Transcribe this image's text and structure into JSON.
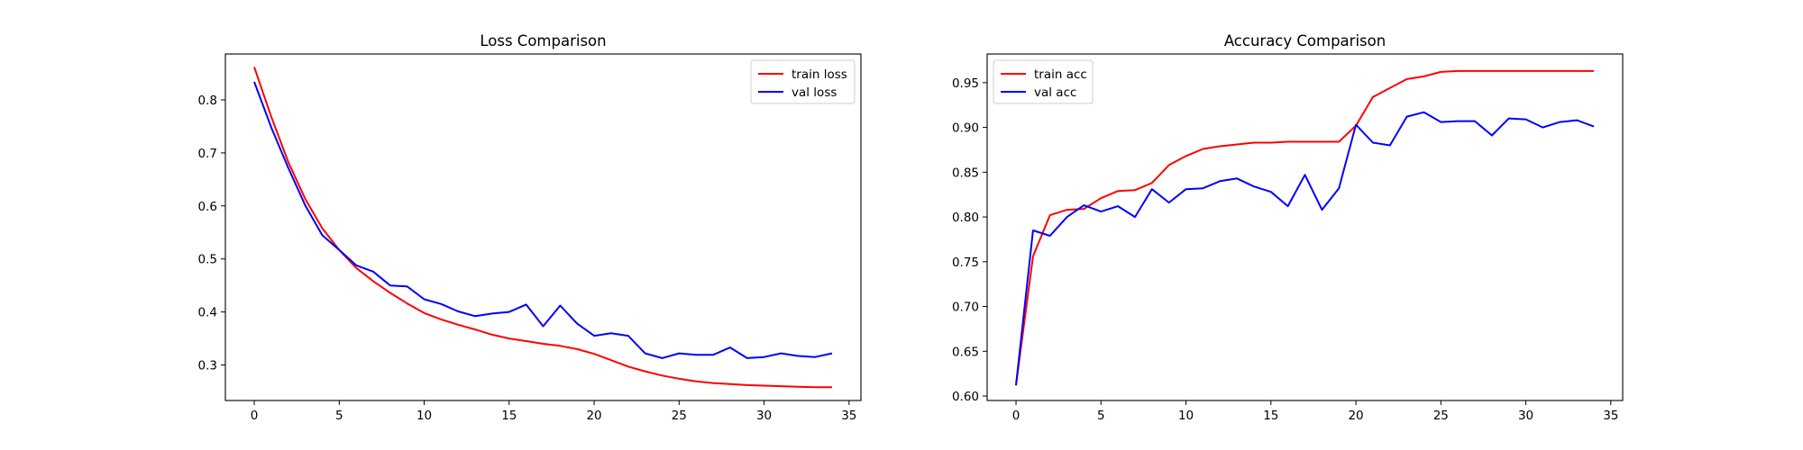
{
  "chart_data": [
    {
      "type": "line",
      "title": "Loss Comparison",
      "xlabel": "",
      "ylabel": "",
      "xlim": [
        -1.7,
        35.7
      ],
      "ylim": [
        0.233,
        0.8865
      ],
      "xticks": [
        0,
        5,
        10,
        15,
        20,
        25,
        30,
        35
      ],
      "yticks": [
        0.3,
        0.4,
        0.5,
        0.6,
        0.7,
        0.8
      ],
      "grid": false,
      "legend_position": "top-right",
      "x": [
        0,
        1,
        2,
        3,
        4,
        5,
        6,
        7,
        8,
        9,
        10,
        11,
        12,
        13,
        14,
        15,
        16,
        17,
        18,
        19,
        20,
        21,
        22,
        23,
        24,
        25,
        26,
        27,
        28,
        29,
        30,
        31,
        32,
        33,
        34
      ],
      "series": [
        {
          "name": "train loss",
          "color": "#ff0000",
          "values": [
            0.862,
            0.768,
            0.683,
            0.613,
            0.558,
            0.517,
            0.483,
            0.458,
            0.436,
            0.416,
            0.398,
            0.386,
            0.376,
            0.367,
            0.357,
            0.35,
            0.345,
            0.34,
            0.336,
            0.33,
            0.321,
            0.309,
            0.297,
            0.288,
            0.28,
            0.274,
            0.269,
            0.266,
            0.264,
            0.262,
            0.261,
            0.26,
            0.259,
            0.258,
            0.258
          ]
        },
        {
          "name": "val loss",
          "color": "#0000ff",
          "values": [
            0.834,
            0.748,
            0.672,
            0.601,
            0.545,
            0.517,
            0.488,
            0.476,
            0.45,
            0.448,
            0.424,
            0.415,
            0.401,
            0.392,
            0.397,
            0.4,
            0.414,
            0.373,
            0.412,
            0.378,
            0.355,
            0.36,
            0.355,
            0.322,
            0.313,
            0.322,
            0.319,
            0.319,
            0.333,
            0.313,
            0.315,
            0.322,
            0.317,
            0.315,
            0.322
          ]
        }
      ]
    },
    {
      "type": "line",
      "title": "Accuracy Comparison",
      "xlabel": "",
      "ylabel": "",
      "xlim": [
        -1.7,
        35.7
      ],
      "ylim": [
        0.595,
        0.982
      ],
      "xticks": [
        0,
        5,
        10,
        15,
        20,
        25,
        30,
        35
      ],
      "yticks": [
        0.6,
        0.65,
        0.7,
        0.75,
        0.8,
        0.85,
        0.9,
        0.95
      ],
      "grid": false,
      "legend_position": "top-left",
      "x": [
        0,
        1,
        2,
        3,
        4,
        5,
        6,
        7,
        8,
        9,
        10,
        11,
        12,
        13,
        14,
        15,
        16,
        17,
        18,
        19,
        20,
        21,
        22,
        23,
        24,
        25,
        26,
        27,
        28,
        29,
        30,
        31,
        32,
        33,
        34
      ],
      "series": [
        {
          "name": "train acc",
          "color": "#ff0000",
          "values": [
            0.612,
            0.756,
            0.802,
            0.808,
            0.809,
            0.821,
            0.829,
            0.83,
            0.838,
            0.858,
            0.868,
            0.876,
            0.879,
            0.881,
            0.883,
            0.883,
            0.884,
            0.884,
            0.884,
            0.884,
            0.902,
            0.934,
            0.944,
            0.954,
            0.957,
            0.962,
            0.963,
            0.963,
            0.963,
            0.963,
            0.963,
            0.963,
            0.963,
            0.963,
            0.963
          ]
        },
        {
          "name": "val acc",
          "color": "#0000ff",
          "values": [
            0.612,
            0.785,
            0.779,
            0.8,
            0.813,
            0.806,
            0.812,
            0.8,
            0.831,
            0.816,
            0.831,
            0.832,
            0.84,
            0.843,
            0.834,
            0.828,
            0.812,
            0.847,
            0.808,
            0.832,
            0.903,
            0.883,
            0.88,
            0.912,
            0.917,
            0.906,
            0.907,
            0.907,
            0.891,
            0.91,
            0.909,
            0.9,
            0.906,
            0.908,
            0.901
          ]
        }
      ]
    }
  ]
}
